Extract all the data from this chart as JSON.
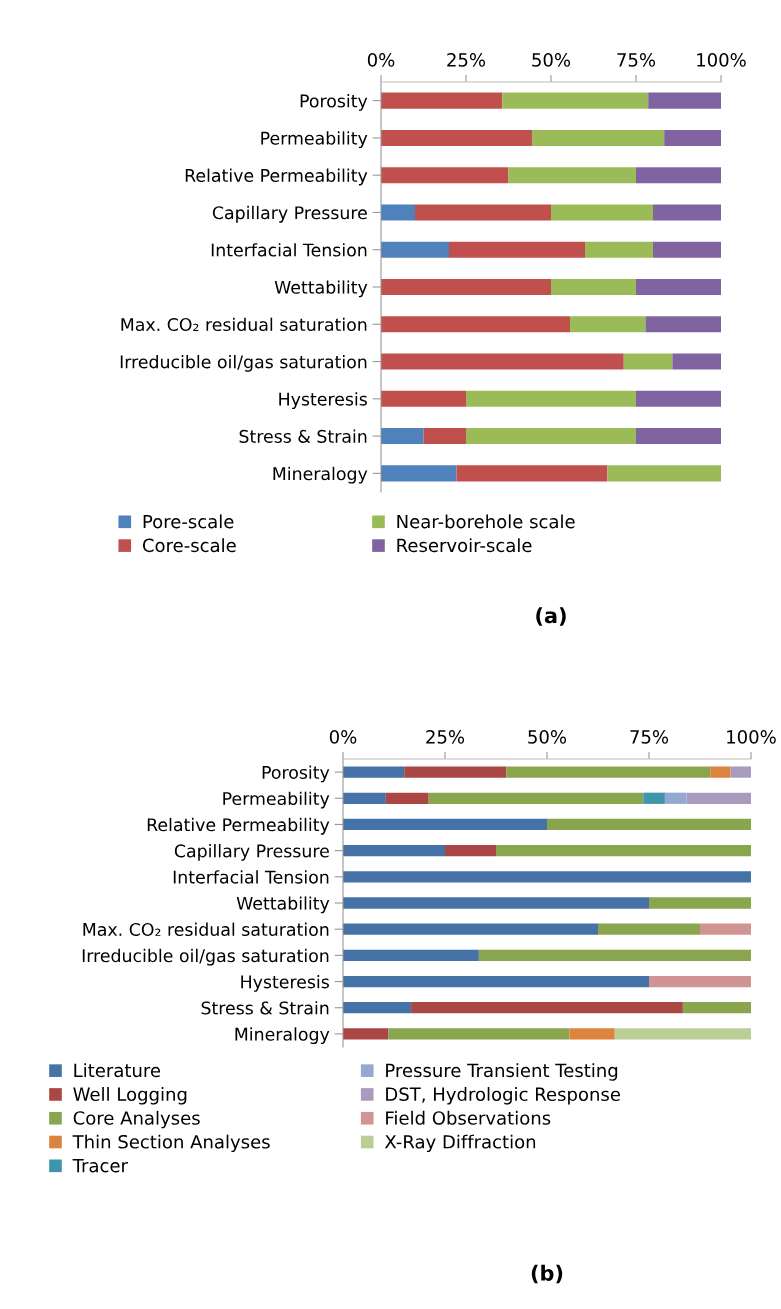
{
  "chart_data": [
    {
      "type": "bar",
      "title": "(a)",
      "orientation": "horizontal",
      "stacked": true,
      "legend": "bottom",
      "grid": false,
      "categories": [
        "Porosity",
        "Permeability",
        "Relative Permeability",
        "Capillary Pressure",
        "Interfacial Tension",
        "Wettability",
        "Max. CO₂ residual saturation",
        "Irreducible oil/gas saturation",
        "Hysteresis",
        "Stress & Strain",
        "Mineralogy"
      ],
      "xlim": [
        0,
        100
      ],
      "xticks": [
        {
          "value": 0,
          "label": "0%"
        },
        {
          "value": 25,
          "label": "25%"
        },
        {
          "value": 50,
          "label": "50%"
        },
        {
          "value": 75,
          "label": "75%"
        },
        {
          "value": 100,
          "label": "100%"
        }
      ],
      "series": [
        {
          "name": "Pore-scale",
          "color": "#4f81bd",
          "values": [
            0,
            0,
            0,
            10,
            20,
            0,
            0,
            0,
            0,
            12.5,
            22.2
          ]
        },
        {
          "name": "Core-scale",
          "color": "#c0504d",
          "values": [
            35.7,
            44.4,
            37.5,
            40,
            40,
            50,
            55.6,
            71.4,
            25,
            12.5,
            44.4
          ]
        },
        {
          "name": "Near-borehole scale",
          "color": "#9bbb59",
          "values": [
            42.9,
            38.9,
            37.5,
            30,
            20,
            25,
            22.2,
            14.3,
            50,
            50,
            33.4
          ]
        },
        {
          "name": "Reservoir-scale",
          "color": "#8064a2",
          "values": [
            21.4,
            16.7,
            25,
            20,
            20,
            25,
            22.2,
            14.3,
            25,
            25,
            0
          ]
        }
      ]
    },
    {
      "type": "bar",
      "title": "(b)",
      "orientation": "horizontal",
      "stacked": true,
      "legend": "bottom",
      "grid": false,
      "categories": [
        "Porosity",
        "Permeability",
        "Relative Permeability",
        "Capillary Pressure",
        "Interfacial Tension",
        "Wettability",
        "Max. CO₂ residual saturation",
        "Irreducible oil/gas saturation",
        "Hysteresis",
        "Stress & Strain",
        "Mineralogy"
      ],
      "xlim": [
        0,
        100
      ],
      "xticks": [
        {
          "value": 0,
          "label": "0%"
        },
        {
          "value": 25,
          "label": "25%"
        },
        {
          "value": 50,
          "label": "50%"
        },
        {
          "value": 75,
          "label": "75%"
        },
        {
          "value": 100,
          "label": "100%"
        }
      ],
      "series": [
        {
          "name": "Literature",
          "color": "#4572a7",
          "values": [
            15,
            10.5,
            50,
            25,
            100,
            75,
            62.5,
            33.3,
            75,
            16.7,
            0
          ]
        },
        {
          "name": "Well Logging",
          "color": "#aa4643",
          "values": [
            25,
            10.5,
            0,
            12.5,
            0,
            0,
            0,
            0,
            0,
            66.6,
            11.1
          ]
        },
        {
          "name": "Core Analyses",
          "color": "#89a54e",
          "values": [
            50,
            52.6,
            50,
            62.5,
            0,
            25,
            25,
            66.7,
            0,
            16.7,
            44.4
          ]
        },
        {
          "name": "Thin Section Analyses",
          "color": "#db843d",
          "values": [
            5,
            0,
            0,
            0,
            0,
            0,
            0,
            0,
            0,
            0,
            11.1
          ]
        },
        {
          "name": "Tracer",
          "color": "#3d96ae",
          "values": [
            0,
            5.3,
            0,
            0,
            0,
            0,
            0,
            0,
            0,
            0,
            0
          ]
        },
        {
          "name": "Pressure Transient Testing",
          "color": "#93a9cf",
          "values": [
            0,
            5.3,
            0,
            0,
            0,
            0,
            0,
            0,
            0,
            0,
            0
          ]
        },
        {
          "name": "DST, Hydrologic Response",
          "color": "#a99bbd",
          "values": [
            5,
            15.8,
            0,
            0,
            0,
            0,
            0,
            0,
            0,
            0,
            0
          ]
        },
        {
          "name": "Field Observations",
          "color": "#d09493",
          "values": [
            0,
            0,
            0,
            0,
            0,
            0,
            12.5,
            0,
            25,
            0,
            0
          ]
        },
        {
          "name": "X-Ray Diffraction",
          "color": "#b9cf96",
          "values": [
            0,
            0,
            0,
            0,
            0,
            0,
            0,
            0,
            0,
            0,
            33.4
          ]
        }
      ]
    }
  ]
}
